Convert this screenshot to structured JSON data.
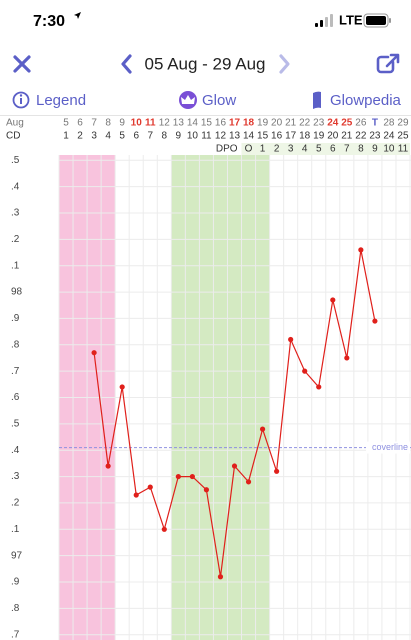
{
  "status_bar": {
    "time": "7:30",
    "network": "LTE"
  },
  "nav": {
    "date_range": "05 Aug - 29 Aug"
  },
  "toolbar": {
    "legend": "Legend",
    "glow": "Glow",
    "glowpedia": "Glowpedia"
  },
  "chart_data": {
    "type": "line",
    "month_label": "Aug",
    "dates": [
      5,
      6,
      7,
      8,
      9,
      10,
      11,
      12,
      13,
      14,
      15,
      16,
      17,
      18,
      19,
      20,
      21,
      22,
      23,
      24,
      25,
      26,
      "T",
      28,
      29
    ],
    "cd_label": "CD",
    "categories": [
      1,
      2,
      3,
      4,
      5,
      6,
      7,
      8,
      9,
      10,
      11,
      12,
      13,
      14,
      15,
      16,
      17,
      18,
      19,
      20,
      21,
      22,
      23,
      24,
      25
    ],
    "dpo_label": "DPO",
    "dpo": [
      null,
      null,
      null,
      null,
      null,
      null,
      null,
      null,
      null,
      null,
      null,
      null,
      null,
      "O",
      1,
      2,
      3,
      4,
      5,
      6,
      7,
      8,
      9,
      10,
      11
    ],
    "values": [
      null,
      null,
      97.77,
      97.34,
      97.64,
      97.23,
      97.26,
      97.1,
      97.3,
      97.3,
      97.25,
      96.92,
      97.34,
      97.28,
      97.48,
      97.32,
      97.82,
      97.7,
      97.64,
      97.97,
      97.75,
      98.16,
      97.89,
      null,
      null
    ],
    "color": "#e0201b",
    "coverline": {
      "value": 97.41,
      "label": "coverline",
      "color": "#8e90e0"
    },
    "bands": [
      {
        "start": 1,
        "end": 4,
        "color": "#f7bcd9"
      },
      {
        "start": 9,
        "end": 15,
        "color": "#cfe8bb"
      }
    ],
    "ylim": [
      96.68,
      98.52
    ],
    "yticks": [
      {
        "value": 98.5,
        "label": ".5"
      },
      {
        "value": 98.4,
        "label": ".4"
      },
      {
        "value": 98.3,
        "label": ".3"
      },
      {
        "value": 98.2,
        "label": ".2"
      },
      {
        "value": 98.1,
        "label": ".1"
      },
      98,
      {
        "value": 97.9,
        "label": ".9"
      },
      {
        "value": 97.8,
        "label": ".8"
      },
      {
        "value": 97.7,
        "label": ".7"
      },
      {
        "value": 97.6,
        "label": ".6"
      },
      {
        "value": 97.5,
        "label": ".5"
      },
      {
        "value": 97.4,
        "label": ".4"
      },
      {
        "value": 97.3,
        "label": ".3"
      },
      {
        "value": 97.2,
        "label": ".2"
      },
      {
        "value": 97.1,
        "label": ".1"
      },
      97,
      {
        "value": 96.9,
        "label": ".9"
      },
      {
        "value": 96.8,
        "label": ".8"
      },
      {
        "value": 96.7,
        "label": ".7"
      }
    ],
    "grid": true
  }
}
